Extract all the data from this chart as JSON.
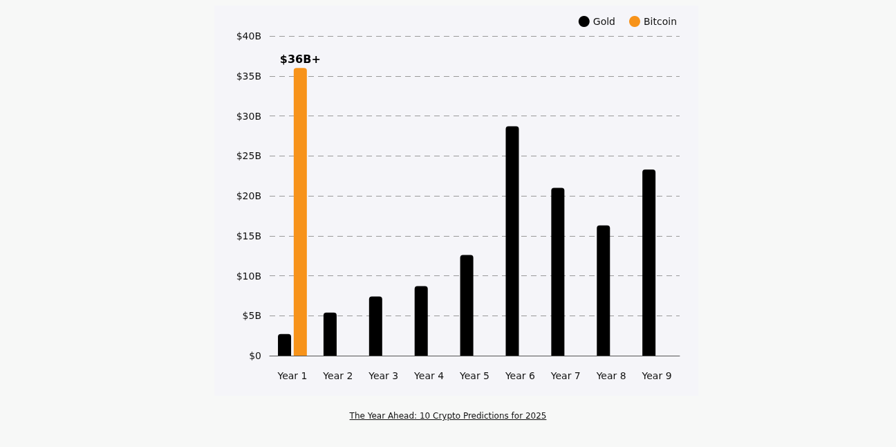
{
  "chart_data": {
    "type": "bar",
    "categories": [
      "Year 1",
      "Year 2",
      "Year 3",
      "Year 4",
      "Year 5",
      "Year 6",
      "Year 7",
      "Year 8",
      "Year 9"
    ],
    "series": [
      {
        "name": "Gold",
        "color": "#000000",
        "values": [
          2.7,
          5.4,
          7.4,
          8.7,
          12.6,
          28.7,
          21.0,
          16.3,
          23.3
        ]
      },
      {
        "name": "Bitcoin",
        "color": "#f7931a",
        "values": [
          36,
          null,
          null,
          null,
          null,
          null,
          null,
          null,
          null
        ],
        "value_labels": [
          "$36B+",
          null,
          null,
          null,
          null,
          null,
          null,
          null,
          null
        ]
      }
    ],
    "ylim": [
      0,
      40
    ],
    "yticks": [
      {
        "value": 0,
        "label": "$0"
      },
      {
        "value": 5,
        "label": "$5B"
      },
      {
        "value": 10,
        "label": "$10B"
      },
      {
        "value": 15,
        "label": "$15B"
      },
      {
        "value": 20,
        "label": "$20B"
      },
      {
        "value": 25,
        "label": "$25B"
      },
      {
        "value": 30,
        "label": "$30B"
      },
      {
        "value": 35,
        "label": "$35B"
      },
      {
        "value": 40,
        "label": "$40B"
      }
    ],
    "grid": "y",
    "legend": "top right",
    "annotations": [
      "The Year Ahead: 10 Crypto Predictions for 2025"
    ]
  }
}
